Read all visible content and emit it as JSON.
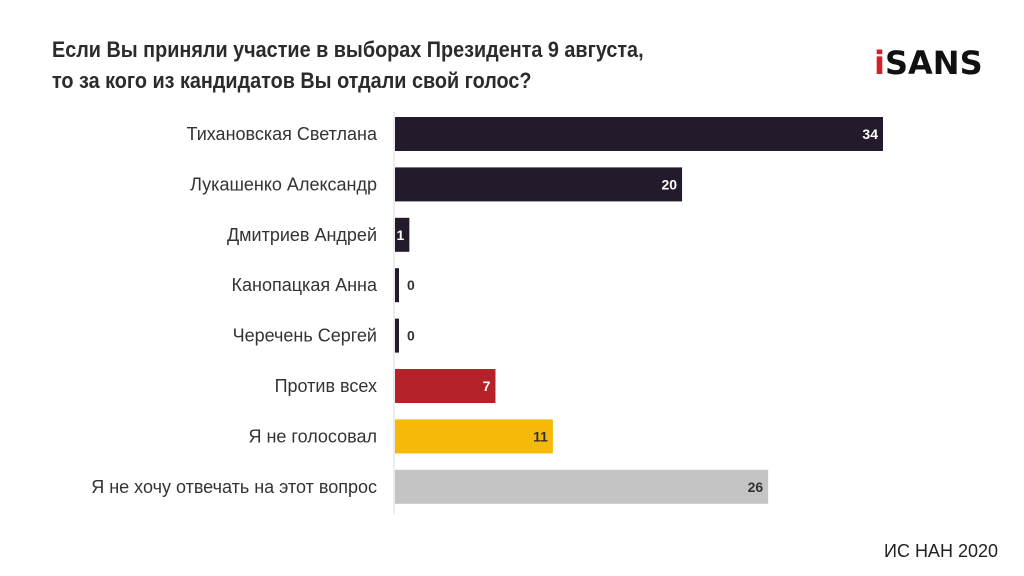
{
  "chart_data": {
    "type": "bar",
    "orientation": "horizontal",
    "title": "Если Вы приняли участие в выборах Президента 9 августа, то за кого из кандидатов Вы отдали свой голос?",
    "title_lines": [
      "Если Вы приняли участие в выборах Президента 9 августа,",
      "то за кого из кандидатов Вы отдали свой голос?"
    ],
    "categories": [
      "Тихановская Светлана",
      "Лукашенко Александр",
      "Дмитриев Андрей",
      "Канопацкая Анна",
      "Черечень Сергей",
      "Против всех",
      "Я не голосовал",
      "Я не хочу отвечать на этот вопрос"
    ],
    "values": [
      34,
      20,
      1,
      0,
      0,
      7,
      11,
      26
    ],
    "colors": [
      "#231b2c",
      "#231b2c",
      "#231b2c",
      "#231b2c",
      "#231b2c",
      "#b52229",
      "#f6b90a",
      "#c4c4c4"
    ],
    "label_colors": [
      "#ffffff",
      "#ffffff",
      "#ffffff",
      "#333333",
      "#333333",
      "#ffffff",
      "#333333",
      "#333333"
    ],
    "xlim": [
      0,
      34
    ],
    "grid": false,
    "data_labels": true
  },
  "logo": {
    "text": "iSANS",
    "prefix": "i",
    "rest": "SANS"
  },
  "source": "ИС НАН 2020"
}
